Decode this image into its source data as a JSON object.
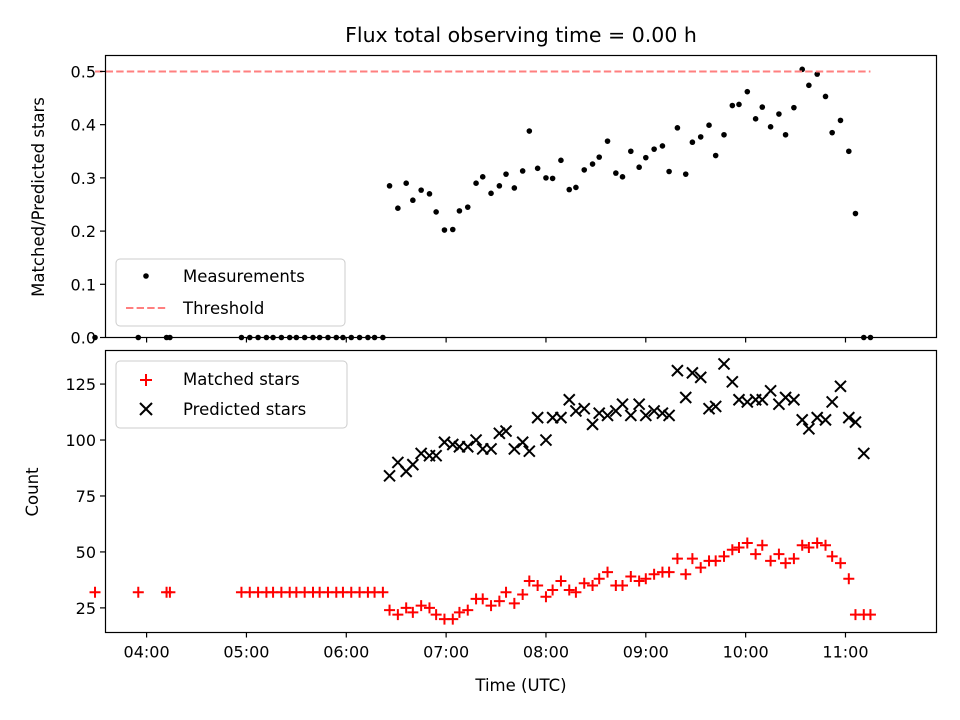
{
  "chart_data": [
    {
      "type": "scatter",
      "title": "Flux total observing time = 0.00 h",
      "xlabel": "",
      "ylabel": "Matched/Predicted stars",
      "ylim": [
        0,
        0.53
      ],
      "yticks": [
        0.0,
        0.1,
        0.2,
        0.3,
        0.4,
        0.5
      ],
      "xlim": [
        "03:35",
        "11:55"
      ],
      "xticks": [
        "04:00",
        "05:00",
        "06:00",
        "07:00",
        "08:00",
        "09:00",
        "10:00",
        "11:00"
      ],
      "legend": {
        "placement": "lower-left",
        "entries": [
          "Measurements",
          "Threshold"
        ]
      },
      "colors": {
        "measurements": "#000000",
        "threshold": "#ff7f7f"
      },
      "series": [
        {
          "name": "Measurements",
          "marker": "dot",
          "points": [
            [
              "03:29",
              0.0
            ],
            [
              "03:55",
              0.0
            ],
            [
              "04:12",
              0.0
            ],
            [
              "04:14",
              0.0
            ],
            [
              "04:57",
              0.0
            ],
            [
              "05:02",
              0.0
            ],
            [
              "05:07",
              0.0
            ],
            [
              "05:12",
              0.0
            ],
            [
              "05:16",
              0.0
            ],
            [
              "05:21",
              0.0
            ],
            [
              "05:26",
              0.0
            ],
            [
              "05:30",
              0.0
            ],
            [
              "05:35",
              0.0
            ],
            [
              "05:40",
              0.0
            ],
            [
              "05:44",
              0.0
            ],
            [
              "05:49",
              0.0
            ],
            [
              "05:54",
              0.0
            ],
            [
              "05:58",
              0.0
            ],
            [
              "06:03",
              0.0
            ],
            [
              "06:08",
              0.0
            ],
            [
              "06:13",
              0.0
            ],
            [
              "06:17",
              0.0
            ],
            [
              "06:22",
              0.0
            ],
            [
              "06:26",
              0.285
            ],
            [
              "06:31",
              0.243
            ],
            [
              "06:36",
              0.29
            ],
            [
              "06:40",
              0.258
            ],
            [
              "06:45",
              0.277
            ],
            [
              "06:50",
              0.27
            ],
            [
              "06:54",
              0.236
            ],
            [
              "06:59",
              0.202
            ],
            [
              "07:04",
              0.203
            ],
            [
              "07:08",
              0.238
            ],
            [
              "07:13",
              0.245
            ],
            [
              "07:18",
              0.29
            ],
            [
              "07:22",
              0.302
            ],
            [
              "07:27",
              0.271
            ],
            [
              "07:32",
              0.285
            ],
            [
              "07:36",
              0.307
            ],
            [
              "07:41",
              0.281
            ],
            [
              "07:46",
              0.313
            ],
            [
              "07:50",
              0.388
            ],
            [
              "07:55",
              0.318
            ],
            [
              "08:00",
              0.3
            ],
            [
              "08:04",
              0.299
            ],
            [
              "08:09",
              0.333
            ],
            [
              "08:14",
              0.278
            ],
            [
              "08:18",
              0.282
            ],
            [
              "08:23",
              0.315
            ],
            [
              "08:28",
              0.326
            ],
            [
              "08:32",
              0.339
            ],
            [
              "08:37",
              0.369
            ],
            [
              "08:42",
              0.309
            ],
            [
              "08:46",
              0.302
            ],
            [
              "08:51",
              0.35
            ],
            [
              "08:56",
              0.32
            ],
            [
              "09:00",
              0.338
            ],
            [
              "09:05",
              0.354
            ],
            [
              "09:10",
              0.36
            ],
            [
              "09:14",
              0.312
            ],
            [
              "09:19",
              0.394
            ],
            [
              "09:24",
              0.307
            ],
            [
              "09:28",
              0.367
            ],
            [
              "09:33",
              0.377
            ],
            [
              "09:38",
              0.399
            ],
            [
              "09:42",
              0.342
            ],
            [
              "09:47",
              0.381
            ],
            [
              "09:52",
              0.436
            ],
            [
              "09:56",
              0.438
            ],
            [
              "10:01",
              0.462
            ],
            [
              "10:06",
              0.411
            ],
            [
              "10:10",
              0.433
            ],
            [
              "10:15",
              0.396
            ],
            [
              "10:20",
              0.42
            ],
            [
              "10:24",
              0.381
            ],
            [
              "10:29",
              0.432
            ],
            [
              "10:34",
              0.504
            ],
            [
              "10:38",
              0.474
            ],
            [
              "10:43",
              0.495
            ],
            [
              "10:48",
              0.453
            ],
            [
              "10:52",
              0.385
            ],
            [
              "10:57",
              0.408
            ],
            [
              "11:02",
              0.35
            ],
            [
              "11:06",
              0.233
            ],
            [
              "11:11",
              0.0
            ],
            [
              "11:15",
              0.0
            ]
          ]
        },
        {
          "name": "Threshold",
          "marker": "dashed-line",
          "points": [
            [
              "03:29",
              0.5
            ],
            [
              "11:15",
              0.5
            ]
          ]
        }
      ]
    },
    {
      "type": "scatter",
      "title": "",
      "xlabel": "Time (UTC)",
      "ylabel": "Count",
      "ylim": [
        14,
        140
      ],
      "yticks": [
        25,
        50,
        75,
        100,
        125
      ],
      "xlim": [
        "03:35",
        "11:55"
      ],
      "xticks": [
        "04:00",
        "05:00",
        "06:00",
        "07:00",
        "08:00",
        "09:00",
        "10:00",
        "11:00"
      ],
      "legend": {
        "placement": "top-left",
        "entries": [
          "Matched stars",
          "Predicted stars"
        ]
      },
      "colors": {
        "matched": "#ff0000",
        "predicted": "#000000"
      },
      "series": [
        {
          "name": "Matched stars",
          "marker": "plus",
          "points": [
            [
              "03:29",
              32
            ],
            [
              "03:55",
              32
            ],
            [
              "04:12",
              32
            ],
            [
              "04:14",
              32
            ],
            [
              "04:57",
              32
            ],
            [
              "05:02",
              32
            ],
            [
              "05:07",
              32
            ],
            [
              "05:12",
              32
            ],
            [
              "05:16",
              32
            ],
            [
              "05:21",
              32
            ],
            [
              "05:26",
              32
            ],
            [
              "05:30",
              32
            ],
            [
              "05:35",
              32
            ],
            [
              "05:40",
              32
            ],
            [
              "05:44",
              32
            ],
            [
              "05:49",
              32
            ],
            [
              "05:54",
              32
            ],
            [
              "05:58",
              32
            ],
            [
              "06:03",
              32
            ],
            [
              "06:08",
              32
            ],
            [
              "06:13",
              32
            ],
            [
              "06:17",
              32
            ],
            [
              "06:22",
              32
            ],
            [
              "06:26",
              24
            ],
            [
              "06:31",
              22
            ],
            [
              "06:36",
              25
            ],
            [
              "06:40",
              23
            ],
            [
              "06:45",
              26
            ],
            [
              "06:50",
              25
            ],
            [
              "06:54",
              22
            ],
            [
              "06:59",
              20
            ],
            [
              "07:04",
              20
            ],
            [
              "07:08",
              23
            ],
            [
              "07:13",
              24
            ],
            [
              "07:18",
              29
            ],
            [
              "07:22",
              29
            ],
            [
              "07:27",
              26
            ],
            [
              "07:32",
              28
            ],
            [
              "07:36",
              32
            ],
            [
              "07:41",
              27
            ],
            [
              "07:46",
              31
            ],
            [
              "07:50",
              37
            ],
            [
              "07:55",
              35
            ],
            [
              "08:00",
              30
            ],
            [
              "08:04",
              33
            ],
            [
              "08:09",
              37
            ],
            [
              "08:14",
              33
            ],
            [
              "08:18",
              32
            ],
            [
              "08:23",
              36
            ],
            [
              "08:28",
              35
            ],
            [
              "08:32",
              38
            ],
            [
              "08:37",
              41
            ],
            [
              "08:42",
              35
            ],
            [
              "08:46",
              35
            ],
            [
              "08:51",
              39
            ],
            [
              "08:56",
              37
            ],
            [
              "09:00",
              38
            ],
            [
              "09:05",
              40
            ],
            [
              "09:10",
              41
            ],
            [
              "09:14",
              41
            ],
            [
              "09:19",
              47
            ],
            [
              "09:24",
              40
            ],
            [
              "09:28",
              47
            ],
            [
              "09:33",
              43
            ],
            [
              "09:38",
              46
            ],
            [
              "09:42",
              46
            ],
            [
              "09:47",
              48
            ],
            [
              "09:52",
              51
            ],
            [
              "09:56",
              52
            ],
            [
              "10:01",
              54
            ],
            [
              "10:06",
              49
            ],
            [
              "10:10",
              53
            ],
            [
              "10:15",
              46
            ],
            [
              "10:20",
              49
            ],
            [
              "10:24",
              45
            ],
            [
              "10:29",
              47
            ],
            [
              "10:34",
              53
            ],
            [
              "10:38",
              52
            ],
            [
              "10:43",
              54
            ],
            [
              "10:48",
              53
            ],
            [
              "10:52",
              48
            ],
            [
              "10:57",
              45
            ],
            [
              "11:02",
              38
            ],
            [
              "11:06",
              22
            ],
            [
              "11:11",
              22
            ],
            [
              "11:15",
              22
            ]
          ]
        },
        {
          "name": "Predicted stars",
          "marker": "x",
          "points": [
            [
              "06:26",
              84
            ],
            [
              "06:31",
              90
            ],
            [
              "06:36",
              86
            ],
            [
              "06:40",
              89
            ],
            [
              "06:45",
              94
            ],
            [
              "06:50",
              93
            ],
            [
              "06:54",
              93
            ],
            [
              "06:59",
              99
            ],
            [
              "07:04",
              98
            ],
            [
              "07:08",
              97
            ],
            [
              "07:13",
              97
            ],
            [
              "07:18",
              100
            ],
            [
              "07:22",
              96
            ],
            [
              "07:27",
              96
            ],
            [
              "07:32",
              103
            ],
            [
              "07:36",
              104
            ],
            [
              "07:41",
              96
            ],
            [
              "07:46",
              99
            ],
            [
              "07:50",
              95
            ],
            [
              "07:55",
              110
            ],
            [
              "08:00",
              100
            ],
            [
              "08:04",
              110
            ],
            [
              "08:09",
              110
            ],
            [
              "08:14",
              118
            ],
            [
              "08:18",
              113
            ],
            [
              "08:23",
              114
            ],
            [
              "08:28",
              107
            ],
            [
              "08:32",
              112
            ],
            [
              "08:37",
              111
            ],
            [
              "08:42",
              113
            ],
            [
              "08:46",
              116
            ],
            [
              "08:51",
              111
            ],
            [
              "08:56",
              116
            ],
            [
              "09:00",
              111
            ],
            [
              "09:05",
              113
            ],
            [
              "09:10",
              112
            ],
            [
              "09:14",
              111
            ],
            [
              "09:19",
              131
            ],
            [
              "09:24",
              119
            ],
            [
              "09:28",
              130
            ],
            [
              "09:33",
              128
            ],
            [
              "09:38",
              114
            ],
            [
              "09:42",
              115
            ],
            [
              "09:47",
              134
            ],
            [
              "09:52",
              126
            ],
            [
              "09:56",
              118
            ],
            [
              "10:01",
              117
            ],
            [
              "10:06",
              118
            ],
            [
              "10:10",
              118
            ],
            [
              "10:15",
              122
            ],
            [
              "10:20",
              116
            ],
            [
              "10:24",
              119
            ],
            [
              "10:29",
              118
            ],
            [
              "10:34",
              109
            ],
            [
              "10:38",
              105
            ],
            [
              "10:43",
              110
            ],
            [
              "10:48",
              109
            ],
            [
              "10:52",
              117
            ],
            [
              "10:57",
              124
            ],
            [
              "11:02",
              110
            ],
            [
              "11:06",
              108
            ],
            [
              "11:11",
              94
            ]
          ]
        }
      ]
    }
  ]
}
